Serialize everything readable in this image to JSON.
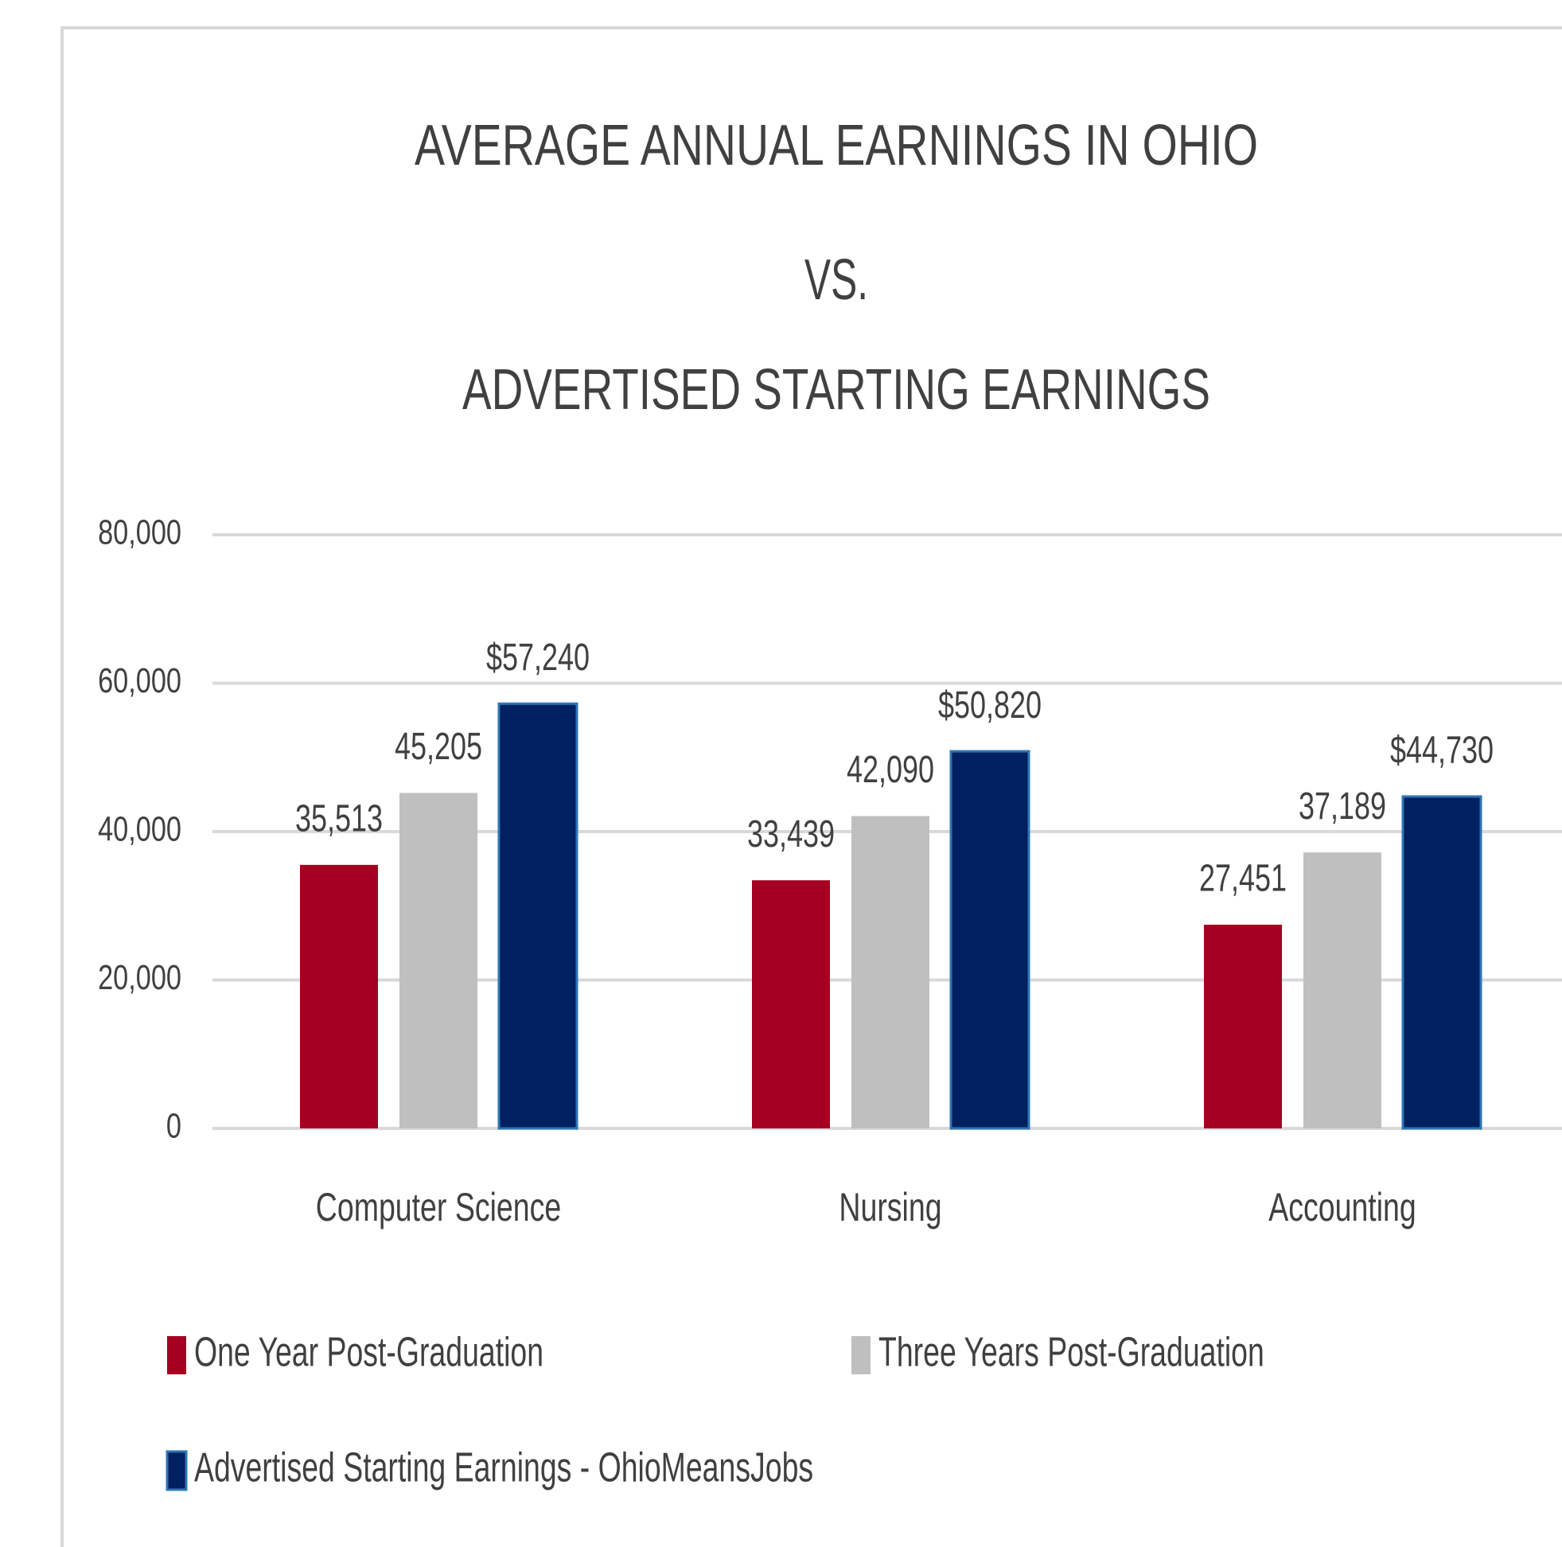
{
  "chart_data": {
    "type": "bar",
    "title_lines": [
      "AVERAGE ANNUAL EARNINGS IN OHIO",
      "VS.",
      "ADVERTISED STARTING EARNINGS"
    ],
    "categories": [
      "Computer Science",
      "Nursing",
      "Accounting"
    ],
    "series": [
      {
        "name": "One Year Post-Graduation",
        "color": "#a50021",
        "values": [
          35513,
          33439,
          27451
        ],
        "value_labels": [
          "35,513",
          "33,439",
          "27,451"
        ]
      },
      {
        "name": "Three Years Post-Graduation",
        "color": "#bfbfbf",
        "values": [
          45205,
          42090,
          37189
        ],
        "value_labels": [
          "45,205",
          "42,090",
          "37,189"
        ]
      },
      {
        "name": "Advertised Starting Earnings - OhioMeansJobs",
        "color": "#002060",
        "values": [
          57240,
          50820,
          44730
        ],
        "value_labels": [
          "$57,240",
          "$50,820",
          "$44,730"
        ]
      }
    ],
    "ylim": [
      0,
      80000
    ],
    "yticks": [
      0,
      {
        "value": 20000,
        "label": "20,000"
      },
      {
        "value": 40000,
        "label": "40,000"
      },
      {
        "value": 60000,
        "label": "60,000"
      },
      {
        "value": 80000,
        "label": "80,000"
      }
    ],
    "grid": true,
    "legend": "bottom"
  }
}
